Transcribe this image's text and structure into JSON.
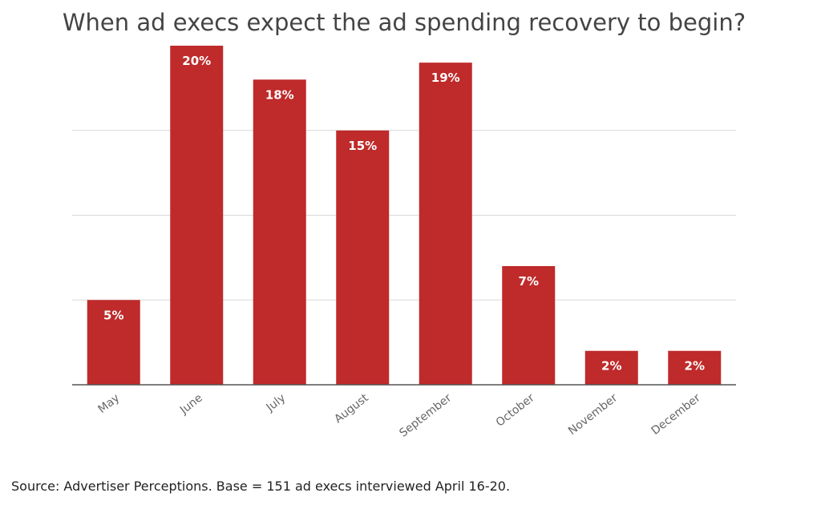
{
  "chart_data": {
    "type": "bar",
    "title": "When ad execs expect the ad spending recovery to begin?",
    "categories": [
      "May",
      "June",
      "July",
      "August",
      "September",
      "October",
      "November",
      "December"
    ],
    "values": [
      5,
      20,
      18,
      15,
      19,
      7,
      2,
      2
    ],
    "data_labels": [
      "5%",
      "20%",
      "18%",
      "15%",
      "19%",
      "7%",
      "2%",
      "2%"
    ],
    "xlabel": "",
    "ylabel": "",
    "ylim": [
      0,
      20
    ],
    "gridlines": [
      0,
      5,
      10,
      15
    ],
    "grid": true,
    "bar_color": "#bf2a2a",
    "source": "Source: Advertiser Perceptions. Base = 151 ad execs interviewed April 16-20."
  }
}
